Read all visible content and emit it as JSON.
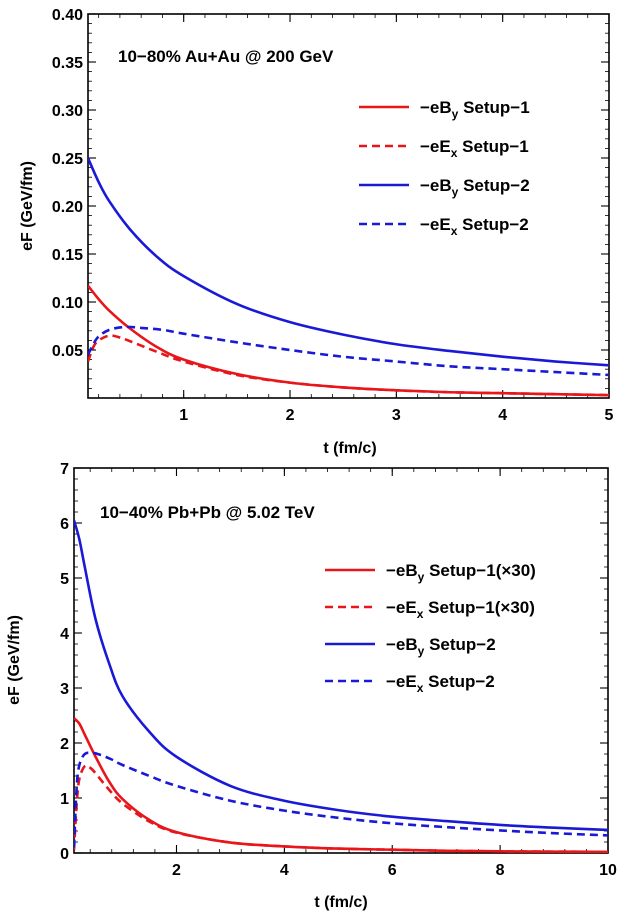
{
  "chart_data": [
    {
      "type": "line",
      "title": "10−80% Au+Au @ 200 GeV",
      "xlabel": "t (fm/c)",
      "ylabel": "eF (GeV/fm)",
      "xlim": [
        0.1,
        5
      ],
      "ylim": [
        0,
        0.4
      ],
      "xticks": [
        1,
        2,
        3,
        4,
        5
      ],
      "xtick_labels": [
        "1",
        "2",
        "3",
        "4",
        "5"
      ],
      "yticks": [
        0.05,
        0.1,
        0.15,
        0.2,
        0.25,
        0.3,
        0.35,
        0.4
      ],
      "ytick_labels": [
        "0.05",
        "0.10",
        "0.15",
        "0.20",
        "0.25",
        "0.30",
        "0.35",
        "0.40"
      ],
      "grid": false,
      "legend_position": "top-right",
      "series": [
        {
          "name": "−eB",
          "name_sub": "y",
          "name_suffix": " Setup−1",
          "color": "#e8161b",
          "dash": "solid",
          "x": [
            0.1,
            0.2,
            0.3,
            0.5,
            0.75,
            1.0,
            1.5,
            2.0,
            2.5,
            3.0,
            3.5,
            4.0,
            4.5,
            5.0
          ],
          "y": [
            0.117,
            0.103,
            0.091,
            0.072,
            0.053,
            0.04,
            0.025,
            0.016,
            0.011,
            0.008,
            0.006,
            0.005,
            0.004,
            0.003
          ]
        },
        {
          "name": "−eE",
          "name_sub": "x",
          "name_suffix": " Setup−1",
          "color": "#e8161b",
          "dash": "dashed",
          "x": [
            0.1,
            0.15,
            0.2,
            0.3,
            0.4,
            0.5,
            0.75,
            1.0,
            1.5,
            2.0,
            2.5,
            3.0,
            3.5,
            4.0,
            4.5,
            5.0
          ],
          "y": [
            0.038,
            0.053,
            0.06,
            0.065,
            0.063,
            0.059,
            0.048,
            0.038,
            0.024,
            0.016,
            0.011,
            0.008,
            0.006,
            0.005,
            0.004,
            0.003
          ]
        },
        {
          "name": "−eB",
          "name_sub": "y",
          "name_suffix": " Setup−2",
          "color": "#1a1ad6",
          "dash": "solid",
          "x": [
            0.1,
            0.2,
            0.3,
            0.5,
            0.75,
            1.0,
            1.5,
            2.0,
            2.5,
            3.0,
            3.5,
            4.0,
            4.5,
            5.0
          ],
          "y": [
            0.25,
            0.225,
            0.205,
            0.175,
            0.147,
            0.127,
            0.098,
            0.079,
            0.066,
            0.056,
            0.049,
            0.043,
            0.038,
            0.034
          ]
        },
        {
          "name": "−eE",
          "name_sub": "x",
          "name_suffix": " Setup−2",
          "color": "#1a1ad6",
          "dash": "dashed",
          "x": [
            0.1,
            0.15,
            0.2,
            0.3,
            0.45,
            0.6,
            0.8,
            1.0,
            1.5,
            2.0,
            2.5,
            3.0,
            3.5,
            4.0,
            4.5,
            5.0
          ],
          "y": [
            0.045,
            0.056,
            0.064,
            0.071,
            0.074,
            0.073,
            0.071,
            0.067,
            0.058,
            0.05,
            0.043,
            0.038,
            0.033,
            0.03,
            0.027,
            0.024
          ]
        }
      ]
    },
    {
      "type": "line",
      "title": "10−40% Pb+Pb @ 5.02 TeV",
      "xlabel": "t (fm/c)",
      "ylabel": "eF (GeV/fm)",
      "xlim": [
        0.1,
        10
      ],
      "ylim": [
        0,
        7
      ],
      "xticks": [
        2,
        4,
        6,
        8,
        10
      ],
      "xtick_labels": [
        "2",
        "4",
        "6",
        "8",
        "10"
      ],
      "yticks": [
        0,
        1,
        2,
        3,
        4,
        5,
        6,
        7
      ],
      "ytick_labels": [
        "0",
        "1",
        "2",
        "3",
        "4",
        "5",
        "6",
        "7"
      ],
      "grid": false,
      "legend_position": "top-right",
      "series": [
        {
          "name": "−eB",
          "name_sub": "y",
          "name_suffix": " Setup−1(×30)",
          "color": "#e8161b",
          "dash": "solid",
          "x": [
            0.1,
            0.2,
            0.3,
            0.5,
            0.75,
            1.0,
            1.5,
            2.0,
            3.0,
            4.0,
            5.0,
            6.0,
            7.0,
            8.0,
            9.0,
            10.0
          ],
          "y": [
            2.45,
            2.35,
            2.15,
            1.75,
            1.3,
            0.98,
            0.6,
            0.38,
            0.19,
            0.12,
            0.08,
            0.06,
            0.04,
            0.03,
            0.025,
            0.02
          ]
        },
        {
          "name": "−eE",
          "name_sub": "x",
          "name_suffix": " Setup−1(×30)",
          "color": "#e8161b",
          "dash": "dashed",
          "x": [
            0.1,
            0.15,
            0.2,
            0.3,
            0.4,
            0.5,
            0.75,
            1.0,
            1.5,
            2.0,
            3.0,
            4.0,
            5.0,
            6.0,
            7.0,
            8.0,
            9.0,
            10.0
          ],
          "y": [
            0.05,
            0.9,
            1.35,
            1.58,
            1.55,
            1.45,
            1.15,
            0.9,
            0.57,
            0.37,
            0.19,
            0.12,
            0.08,
            0.06,
            0.04,
            0.03,
            0.025,
            0.02
          ]
        },
        {
          "name": "−eB",
          "name_sub": "y",
          "name_suffix": " Setup−2",
          "color": "#1a1ad6",
          "dash": "solid",
          "x": [
            0.1,
            0.2,
            0.3,
            0.5,
            0.75,
            1.0,
            1.5,
            2.0,
            3.0,
            4.0,
            5.0,
            6.0,
            7.0,
            8.0,
            9.0,
            10.0
          ],
          "y": [
            6.05,
            5.7,
            5.2,
            4.25,
            3.45,
            2.85,
            2.2,
            1.75,
            1.22,
            0.95,
            0.78,
            0.66,
            0.58,
            0.51,
            0.46,
            0.42
          ]
        },
        {
          "name": "−eE",
          "name_sub": "x",
          "name_suffix": " Setup−2",
          "color": "#1a1ad6",
          "dash": "dashed",
          "x": [
            0.1,
            0.15,
            0.2,
            0.3,
            0.45,
            0.6,
            0.8,
            1.0,
            1.5,
            2.0,
            3.0,
            4.0,
            5.0,
            6.0,
            7.0,
            8.0,
            9.0,
            10.0
          ],
          "y": [
            0.1,
            1.2,
            1.6,
            1.8,
            1.82,
            1.78,
            1.7,
            1.6,
            1.4,
            1.22,
            0.95,
            0.77,
            0.64,
            0.54,
            0.47,
            0.41,
            0.36,
            0.32
          ]
        }
      ]
    }
  ]
}
